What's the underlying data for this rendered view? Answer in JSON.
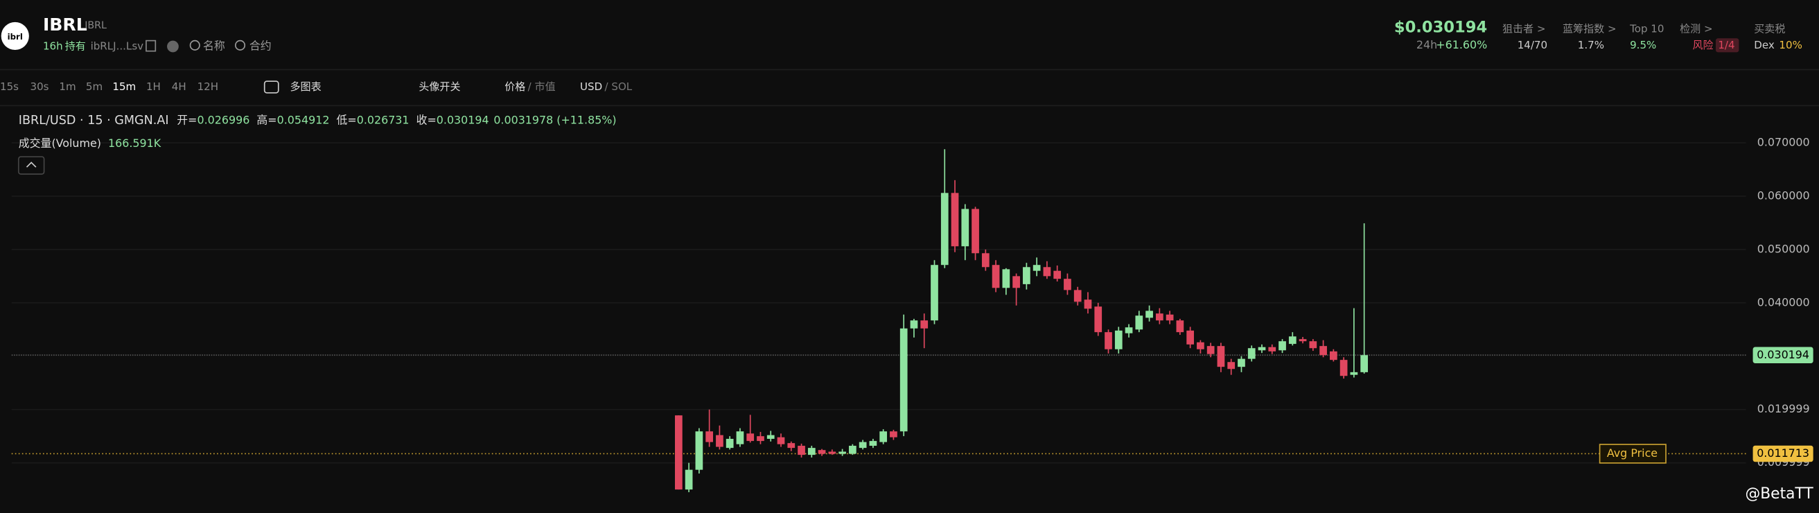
{
  "header": {
    "symbol": "IBRL",
    "symbol_small": "IBRL",
    "icon": "ibrl",
    "age": "16h",
    "hold": "持有",
    "address": "ibRLJ...Lsv",
    "search_name": "名称",
    "search_contract": "合约",
    "price": "$0.030194",
    "change_label": "24h",
    "change": "+61.60%",
    "stats": [
      {
        "label": "狙击者 >",
        "value": "14/70"
      },
      {
        "label": "蓝筹指数 >",
        "value": "1.7%"
      },
      {
        "label": "Top 10",
        "value": "9.5%"
      },
      {
        "label": "检测 >",
        "value": "风险",
        "extra": "1/4"
      },
      {
        "label": "买卖税",
        "value": "Dex",
        "extra": "10%"
      }
    ]
  },
  "toolbar": {
    "intervals": [
      "15s",
      "30s",
      "1m",
      "5m",
      "15m",
      "1H",
      "4H",
      "12H"
    ],
    "multi_chart": "多图表",
    "avatar_toggle": "头像开关",
    "price": "价格",
    "market_cap": "/ 市值",
    "usd": "USD",
    "sol": "/ SOL"
  },
  "legend": {
    "ohlc": [
      {
        "label": "开=",
        "value": "0.026996"
      },
      {
        "label": "高=",
        "value": "0.054912"
      },
      {
        "label": "低=",
        "value": "0.026731"
      },
      {
        "label": "收=",
        "value": "0.030194"
      }
    ],
    "change": "0.0031978 (+11.85%)",
    "volume_label": "成交量(Volume)",
    "volume": "166.591K"
  },
  "watermark": "@BetaTT",
  "chart_data": {
    "type": "candlestick",
    "title": "IBRL/USD · 15 · GMGN.AI",
    "up_color": "#8fe3a0",
    "down_color": "#e0475f",
    "open": [
      0.0189,
      0.005,
      0.0087,
      0.0159,
      0.0152,
      0.0128,
      0.0135,
      0.0155,
      0.015,
      0.0145,
      0.0148,
      0.0137,
      0.0132,
      0.0115,
      0.0124,
      0.0121,
      0.0117,
      0.0117,
      0.0128,
      0.0132,
      0.0139,
      0.0159,
      0.0159,
      0.0352,
      0.0367,
      0.0367,
      0.0471,
      0.0606,
      0.0506,
      0.0576,
      0.0493,
      0.0471,
      0.0428,
      0.045,
      0.0435,
      0.046,
      0.0467,
      0.046,
      0.0445,
      0.0424,
      0.0406,
      0.0393,
      0.0345,
      0.0313,
      0.0343,
      0.035,
      0.0372,
      0.038,
      0.0378,
      0.0367,
      0.0348,
      0.0326,
      0.0319,
      0.0319,
      0.0289,
      0.028,
      0.0295,
      0.0311,
      0.0317,
      0.0311,
      0.0323,
      0.0332,
      0.0328,
      0.0319,
      0.0309,
      0.0293,
      0.0265,
      0.026996
    ],
    "high": [
      0.0189,
      0.01,
      0.0165,
      0.02,
      0.017,
      0.015,
      0.0165,
      0.019,
      0.0158,
      0.016,
      0.0155,
      0.014,
      0.0136,
      0.0132,
      0.0126,
      0.0125,
      0.0126,
      0.0135,
      0.0143,
      0.0145,
      0.0163,
      0.0162,
      0.0378,
      0.037,
      0.038,
      0.048,
      0.0688,
      0.063,
      0.0585,
      0.058,
      0.05,
      0.048,
      0.0465,
      0.0455,
      0.0475,
      0.0485,
      0.0478,
      0.047,
      0.0455,
      0.043,
      0.042,
      0.04,
      0.035,
      0.0355,
      0.036,
      0.0385,
      0.0395,
      0.039,
      0.0385,
      0.037,
      0.0355,
      0.033,
      0.0325,
      0.0325,
      0.0295,
      0.03,
      0.032,
      0.0322,
      0.0322,
      0.0332,
      0.0345,
      0.0336,
      0.0332,
      0.033,
      0.0313,
      0.0298,
      0.039,
      0.054912
    ],
    "low": [
      0.005,
      0.0045,
      0.008,
      0.013,
      0.0125,
      0.0125,
      0.013,
      0.0138,
      0.0135,
      0.014,
      0.013,
      0.0122,
      0.011,
      0.011,
      0.0113,
      0.0115,
      0.0113,
      0.0115,
      0.0125,
      0.0128,
      0.0135,
      0.0143,
      0.015,
      0.0335,
      0.0315,
      0.036,
      0.0465,
      0.0495,
      0.048,
      0.048,
      0.046,
      0.042,
      0.0415,
      0.0395,
      0.0425,
      0.045,
      0.0445,
      0.044,
      0.0415,
      0.0395,
      0.038,
      0.0338,
      0.0305,
      0.0305,
      0.0335,
      0.0345,
      0.0365,
      0.036,
      0.036,
      0.034,
      0.0315,
      0.0305,
      0.0298,
      0.027,
      0.0265,
      0.027,
      0.029,
      0.0306,
      0.0304,
      0.0306,
      0.032,
      0.0324,
      0.031,
      0.0298,
      0.029,
      0.0258,
      0.026,
      0.026731
    ],
    "close": [
      0.005,
      0.0087,
      0.0159,
      0.0139,
      0.013,
      0.0145,
      0.0159,
      0.0141,
      0.0141,
      0.0152,
      0.0135,
      0.0128,
      0.0115,
      0.0128,
      0.0117,
      0.0117,
      0.0121,
      0.0132,
      0.0139,
      0.0141,
      0.0159,
      0.0148,
      0.0352,
      0.0367,
      0.0352,
      0.0471,
      0.0606,
      0.0506,
      0.0576,
      0.0493,
      0.0467,
      0.0428,
      0.0463,
      0.0428,
      0.0467,
      0.0471,
      0.045,
      0.0445,
      0.0424,
      0.0402,
      0.0389,
      0.0345,
      0.0313,
      0.0348,
      0.0354,
      0.0376,
      0.0385,
      0.0367,
      0.0367,
      0.0345,
      0.0322,
      0.0313,
      0.0304,
      0.028,
      0.0276,
      0.0295,
      0.0315,
      0.0317,
      0.0309,
      0.0328,
      0.0337,
      0.0328,
      0.0315,
      0.0302,
      0.0293,
      0.0263,
      0.027,
      0.030194
    ],
    "ylim": [
      0.0006,
      0.0761
    ],
    "yticks": [
      {
        "value": 0.07,
        "label": "0.070000"
      },
      {
        "value": 0.06,
        "label": "0.060000"
      },
      {
        "value": 0.05,
        "label": "0.050000"
      },
      {
        "value": 0.04,
        "label": "0.040000"
      },
      0.019999,
      0.009999
    ],
    "grid": true,
    "current_price": {
      "value": 0.030194,
      "label": "0.030194"
    },
    "avg_price": {
      "name": "Avg Price",
      "value": 0.011713,
      "label": "0.011713"
    }
  }
}
